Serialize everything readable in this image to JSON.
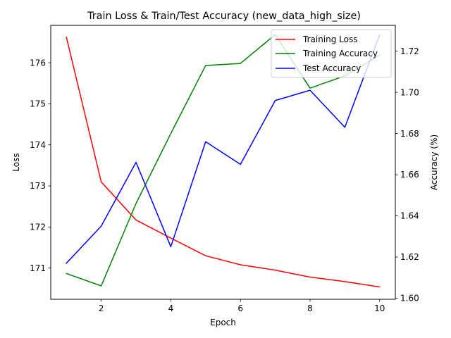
{
  "chart_data": {
    "type": "line",
    "title": "Train Loss & Train/Test Accuracy (new_data_high_size)",
    "xlabel": "Epoch",
    "ylabel_left": "Loss",
    "ylabel_right": "Accuracy (%)",
    "x": [
      1,
      2,
      3,
      4,
      5,
      6,
      7,
      8,
      9,
      10
    ],
    "xlim": [
      0.55,
      10.45
    ],
    "xticks": [
      2,
      4,
      6,
      8,
      10
    ],
    "ylim_left": [
      170.24,
      176.91
    ],
    "yticks_left": [
      171,
      172,
      173,
      174,
      175,
      176
    ],
    "ylim_right": [
      1.5995,
      1.7325
    ],
    "yticks_right": [
      1.6,
      1.62,
      1.64,
      1.66,
      1.68,
      1.7,
      1.72
    ],
    "yticks_right_labels": [
      "1.60",
      "1.62",
      "1.64",
      "1.66",
      "1.68",
      "1.70",
      "1.72"
    ],
    "grid": false,
    "legend_position": "top-right",
    "series": [
      {
        "name": "Training Loss",
        "axis": "left",
        "color": "#ff0000",
        "values": [
          176.62,
          173.1,
          172.17,
          171.73,
          171.3,
          171.08,
          170.95,
          170.78,
          170.67,
          170.54
        ]
      },
      {
        "name": "Training Accuracy",
        "axis": "right",
        "color": "#008000",
        "values": [
          1.612,
          1.606,
          1.646,
          1.68,
          1.713,
          1.714,
          1.728,
          1.702,
          1.708,
          1.718
        ]
      },
      {
        "name": "Test Accuracy",
        "axis": "right",
        "color": "#0000ff",
        "values": [
          1.617,
          1.635,
          1.666,
          1.625,
          1.676,
          1.665,
          1.696,
          1.701,
          1.683,
          1.728
        ]
      }
    ]
  }
}
